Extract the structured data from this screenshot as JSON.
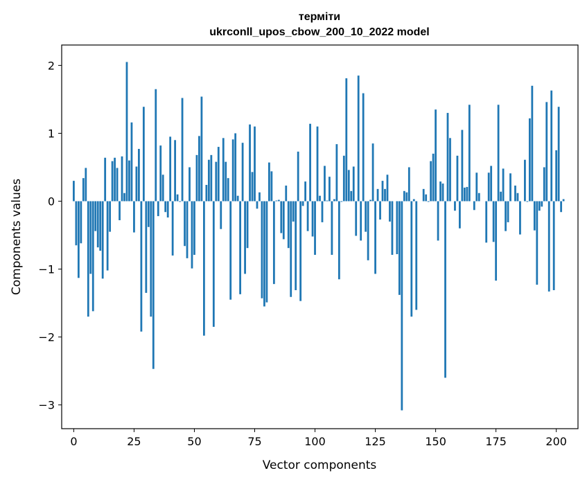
{
  "chart_data": {
    "type": "bar",
    "title_line1": "терміти",
    "title_line2": "ukrconll_upos_cbow_200_10_2022 model",
    "xlabel": "Vector components",
    "ylabel": "Components values",
    "xlim": [
      -5,
      209
    ],
    "ylim": [
      -3.35,
      2.3
    ],
    "xticks": [
      0,
      25,
      50,
      75,
      100,
      125,
      150,
      175,
      200
    ],
    "yticks": [
      2,
      1,
      0,
      -1,
      -2,
      -3
    ],
    "xtick_labels": [
      "0",
      "25",
      "50",
      "75",
      "100",
      "125",
      "150",
      "175",
      "200"
    ],
    "ytick_labels": [
      "2",
      "1",
      "0",
      "−1",
      "−2",
      "−3"
    ],
    "bar_color": "#1f77b4",
    "grid": false,
    "values": [
      0.3,
      -0.65,
      -1.13,
      -0.62,
      0.34,
      0.49,
      -1.7,
      -1.07,
      -1.62,
      -0.44,
      -0.68,
      -0.73,
      -1.14,
      0.64,
      -1.02,
      -0.45,
      0.59,
      0.64,
      0.49,
      -0.28,
      0.66,
      0.12,
      2.05,
      0.6,
      1.16,
      -0.46,
      0.51,
      0.77,
      -1.92,
      1.39,
      -1.35,
      -0.38,
      -1.7,
      -2.47,
      1.65,
      -0.22,
      0.82,
      0.39,
      -0.16,
      -0.24,
      0.95,
      -0.8,
      0.9,
      0.1,
      -0.01,
      1.52,
      -0.66,
      -0.84,
      0.5,
      -0.99,
      -0.79,
      0.68,
      0.96,
      1.54,
      -1.98,
      0.24,
      0.61,
      0.68,
      -1.85,
      0.58,
      0.8,
      -0.41,
      0.93,
      0.58,
      0.34,
      -1.45,
      0.91,
      1.0,
      0.08,
      -1.37,
      0.86,
      -1.07,
      -0.69,
      1.13,
      0.43,
      1.1,
      -0.11,
      0.13,
      -1.43,
      -1.55,
      -1.49,
      0.57,
      0.44,
      -1.22,
      0.01,
      0.02,
      -0.47,
      -0.56,
      0.23,
      -0.69,
      -1.41,
      -0.3,
      -1.31,
      0.73,
      -1.47,
      -0.07,
      0.29,
      -0.44,
      1.14,
      -0.52,
      -0.79,
      1.1,
      0.08,
      -0.31,
      0.52,
      0.01,
      0.36,
      -0.79,
      0.03,
      0.84,
      -1.15,
      -0.01,
      0.67,
      1.81,
      0.46,
      0.15,
      0.51,
      -0.51,
      1.85,
      -0.58,
      1.59,
      -0.45,
      -0.87,
      0.02,
      0.85,
      -1.07,
      0.18,
      -0.27,
      0.3,
      0.18,
      0.39,
      -0.3,
      -0.79,
      0.0,
      -0.78,
      -1.38,
      -3.08,
      0.15,
      0.13,
      0.5,
      -1.7,
      0.03,
      -1.6,
      0.0,
      0.0,
      0.18,
      0.1,
      -0.01,
      0.59,
      0.7,
      1.35,
      -0.58,
      0.29,
      0.26,
      -2.6,
      1.3,
      0.93,
      0.0,
      -0.14,
      0.67,
      -0.4,
      1.05,
      0.2,
      0.21,
      1.42,
      0.0,
      -0.13,
      0.42,
      0.12,
      0.0,
      0.0,
      -0.61,
      0.42,
      0.52,
      -0.6,
      -1.17,
      1.42,
      0.14,
      0.48,
      -0.44,
      -0.31,
      0.41,
      0.0,
      0.23,
      0.12,
      -0.49,
      0.0,
      0.61,
      -0.01,
      1.22,
      1.7,
      -0.43,
      -1.23,
      -0.14,
      -0.08,
      0.5,
      1.46,
      -1.33,
      1.63,
      -1.31,
      0.75,
      1.39,
      -0.16,
      0.03
    ]
  }
}
